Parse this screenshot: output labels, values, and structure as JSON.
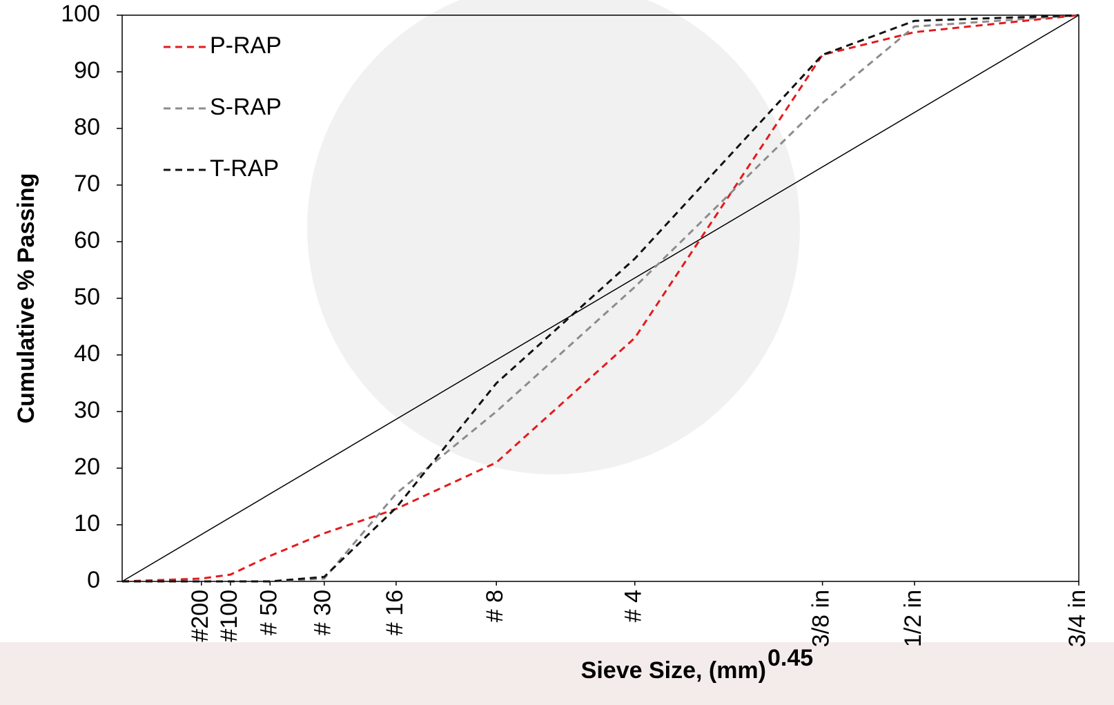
{
  "chart_data": {
    "type": "line",
    "y_label": "Cumulative % Passing",
    "x_label": "Sieve Size, (mm)",
    "x_power": 0.45,
    "x": [
      0,
      0.075,
      0.15,
      0.3,
      0.6,
      1.18,
      2.36,
      4.75,
      9.5,
      12.5,
      19
    ],
    "series": [
      {
        "name": "P-RAP",
        "color": "#e41a1c",
        "values": [
          0,
          0.5,
          1.2,
          4.5,
          8.5,
          12.8,
          21,
          43,
          93,
          97,
          100
        ]
      },
      {
        "name": "S-RAP",
        "color": "#8c8c8c",
        "values": [
          0,
          0,
          0,
          0,
          0.5,
          15.5,
          30,
          52,
          84.5,
          98,
          100
        ]
      },
      {
        "name": "T-RAP",
        "color": "#111111",
        "values": [
          0,
          0,
          0,
          0,
          0.8,
          13,
          35,
          57,
          93,
          99,
          100
        ]
      }
    ],
    "reference_line": {
      "x": [
        0,
        19
      ],
      "values": [
        0,
        100
      ],
      "color": "#000000"
    },
    "xlim": [
      0,
      19
    ],
    "ylim": [
      0,
      100
    ],
    "yticks": [
      0,
      10,
      20,
      30,
      40,
      50,
      60,
      70,
      80,
      90,
      100
    ],
    "xticks": [
      {
        "value": 0.075,
        "label": "#200"
      },
      {
        "value": 0.15,
        "label": "#100"
      },
      {
        "value": 0.3,
        "label": "# 50"
      },
      {
        "value": 0.6,
        "label": "# 30"
      },
      {
        "value": 1.18,
        "label": "# 16"
      },
      {
        "value": 2.36,
        "label": "# 8"
      },
      {
        "value": 4.75,
        "label": "# 4"
      },
      {
        "value": 9.5,
        "label": "3/8 in"
      },
      {
        "value": 12.5,
        "label": "1/2 in"
      },
      {
        "value": 19,
        "label": "3/4 in"
      }
    ],
    "legend": "upper-left"
  }
}
